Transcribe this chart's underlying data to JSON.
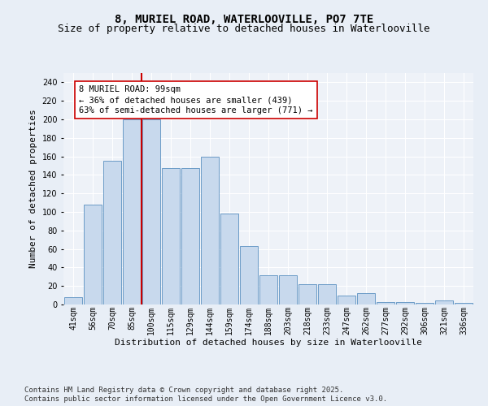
{
  "title_line1": "8, MURIEL ROAD, WATERLOOVILLE, PO7 7TE",
  "title_line2": "Size of property relative to detached houses in Waterlooville",
  "xlabel": "Distribution of detached houses by size in Waterlooville",
  "ylabel": "Number of detached properties",
  "categories": [
    "41sqm",
    "56sqm",
    "70sqm",
    "85sqm",
    "100sqm",
    "115sqm",
    "129sqm",
    "144sqm",
    "159sqm",
    "174sqm",
    "188sqm",
    "203sqm",
    "218sqm",
    "233sqm",
    "247sqm",
    "262sqm",
    "277sqm",
    "292sqm",
    "306sqm",
    "321sqm",
    "336sqm"
  ],
  "values": [
    8,
    108,
    155,
    200,
    200,
    147,
    147,
    160,
    98,
    63,
    32,
    32,
    22,
    22,
    10,
    12,
    3,
    3,
    2,
    4,
    2
  ],
  "bar_color": "#c8d9ed",
  "bar_edge_color": "#5a8fc0",
  "vline_index": 4,
  "vline_color": "#cc0000",
  "annotation_text": "8 MURIEL ROAD: 99sqm\n← 36% of detached houses are smaller (439)\n63% of semi-detached houses are larger (771) →",
  "annotation_box_color": "#ffffff",
  "annotation_box_edge": "#cc0000",
  "ylim": [
    0,
    250
  ],
  "yticks": [
    0,
    20,
    40,
    60,
    80,
    100,
    120,
    140,
    160,
    180,
    200,
    220,
    240
  ],
  "bg_color": "#e8eef6",
  "plot_bg_color": "#eef2f8",
  "grid_color": "#ffffff",
  "footer_line1": "Contains HM Land Registry data © Crown copyright and database right 2025.",
  "footer_line2": "Contains public sector information licensed under the Open Government Licence v3.0.",
  "title_fontsize": 10,
  "subtitle_fontsize": 9,
  "axis_label_fontsize": 8,
  "tick_fontsize": 7,
  "annotation_fontsize": 7.5,
  "footer_fontsize": 6.5
}
